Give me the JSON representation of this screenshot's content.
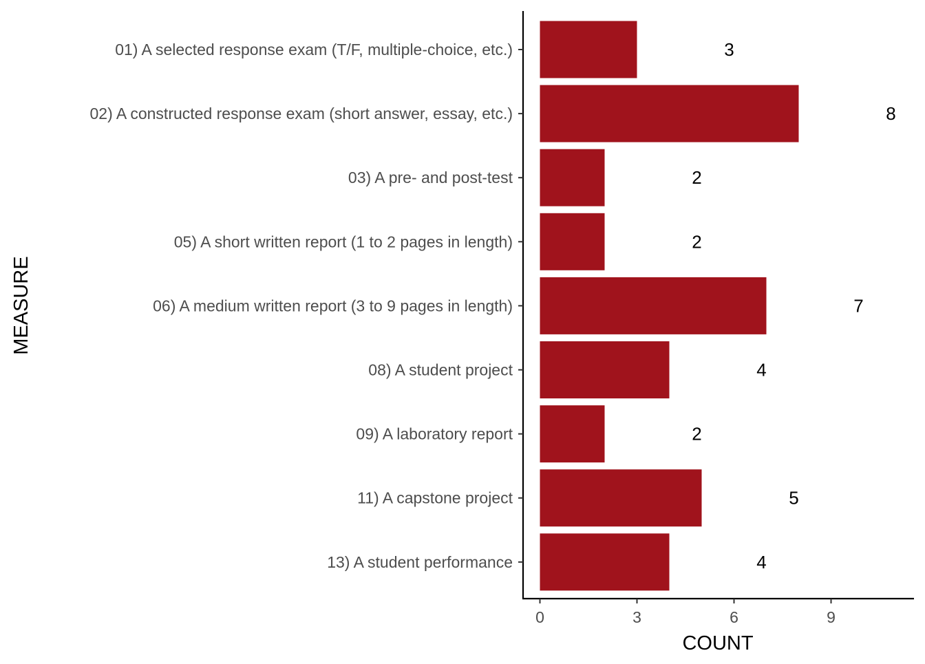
{
  "chart_data": {
    "type": "bar",
    "orientation": "horizontal",
    "title": "",
    "xlabel": "COUNT",
    "ylabel": "MEASURE",
    "categories": [
      "01) A selected response exam (T/F, multiple-choice, etc.)",
      "02) A constructed response exam (short answer, essay, etc.)",
      "03) A pre- and post-test",
      "05) A short written report (1 to 2 pages in length)",
      "06) A medium written report (3 to 9 pages in length)",
      "08) A student project",
      "09) A laboratory report",
      "11) A capstone project",
      "13) A student performance"
    ],
    "values": [
      3,
      8,
      2,
      2,
      7,
      4,
      2,
      5,
      4
    ],
    "data_labels": [
      "3",
      "8",
      "2",
      "2",
      "7",
      "4",
      "2",
      "5",
      "4"
    ],
    "x_ticks": [
      0,
      3,
      6,
      9
    ],
    "x_tick_labels": [
      "0",
      "3",
      "6",
      "9"
    ],
    "xlim": [
      0,
      11.5
    ],
    "grid": false,
    "legend": "none",
    "bar_color": "#a0131c"
  }
}
